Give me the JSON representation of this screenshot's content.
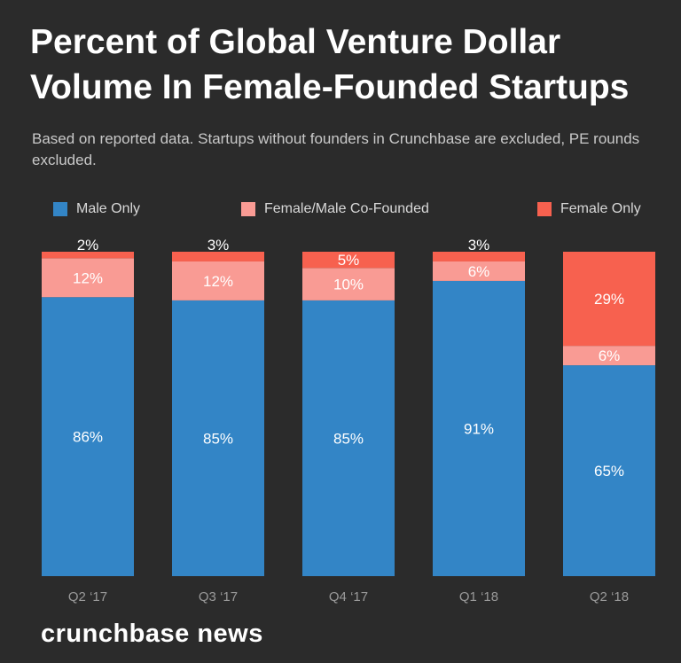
{
  "chart_data": {
    "type": "bar",
    "stacked": true,
    "title": "Percent of Global Venture Dollar Volume In Female-Founded Startups",
    "subtitle": "Based on reported data. Startups without founders in Crunchbase are excluded, PE rounds excluded.",
    "categories": [
      "Q2 ‘17",
      "Q3 ‘17",
      "Q4 ‘17",
      "Q1 ‘18",
      "Q2 ‘18"
    ],
    "series": [
      {
        "name": "Male Only",
        "color": "#3385c6",
        "values": [
          86,
          85,
          85,
          91,
          65
        ],
        "labels": [
          "86%",
          "85%",
          "85%",
          "91%",
          "65%"
        ]
      },
      {
        "name": "Female/Male Co-Founded",
        "color": "#f99b94",
        "values": [
          12,
          12,
          10,
          6,
          6
        ],
        "labels": [
          "12%",
          "12%",
          "10%",
          "6%",
          "6%"
        ]
      },
      {
        "name": "Female Only",
        "color": "#f7614f",
        "values": [
          2,
          3,
          5,
          3,
          29
        ],
        "labels": [
          "2%",
          "3%",
          "5%",
          "3%",
          "29%"
        ]
      }
    ],
    "xlabel": "",
    "ylabel": "",
    "ylim": [
      0,
      100
    ],
    "grid": false,
    "legend_position": "top"
  },
  "brand": {
    "logo_text": "crunchbase news"
  }
}
